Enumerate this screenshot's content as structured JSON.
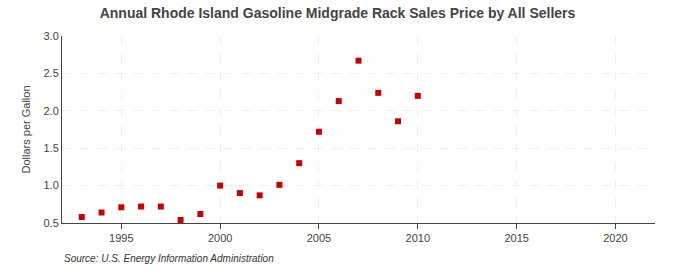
{
  "chart_data": {
    "type": "scatter",
    "title": "Annual Rhode Island Gasoline Midgrade Rack Sales Price by All Sellers",
    "ylabel": "Dollars per Gallon",
    "source": "Source: U.S. Energy Information Administration",
    "x": [
      1993,
      1994,
      1995,
      1996,
      1997,
      1998,
      1999,
      2000,
      2001,
      2002,
      2003,
      2004,
      2005,
      2006,
      2007,
      2008,
      2009,
      2010
    ],
    "values": [
      0.58,
      0.64,
      0.71,
      0.72,
      0.72,
      0.54,
      0.62,
      1.0,
      0.9,
      0.87,
      1.01,
      1.3,
      1.72,
      2.13,
      2.67,
      2.24,
      1.86,
      2.2
    ],
    "color": "#cc0000",
    "marker": "square",
    "xlim": [
      1992,
      2022
    ],
    "ylim": [
      0.5,
      3.0
    ],
    "xticks": [
      1995,
      2000,
      2005,
      2010,
      2015,
      2020
    ],
    "yticks": [
      0.5,
      {
        "value": 1.0,
        "label": "1.0"
      },
      1.5,
      {
        "value": 2.0,
        "label": "2.0"
      },
      2.5,
      {
        "value": 3.0,
        "label": "3.0"
      }
    ],
    "grid": true
  }
}
